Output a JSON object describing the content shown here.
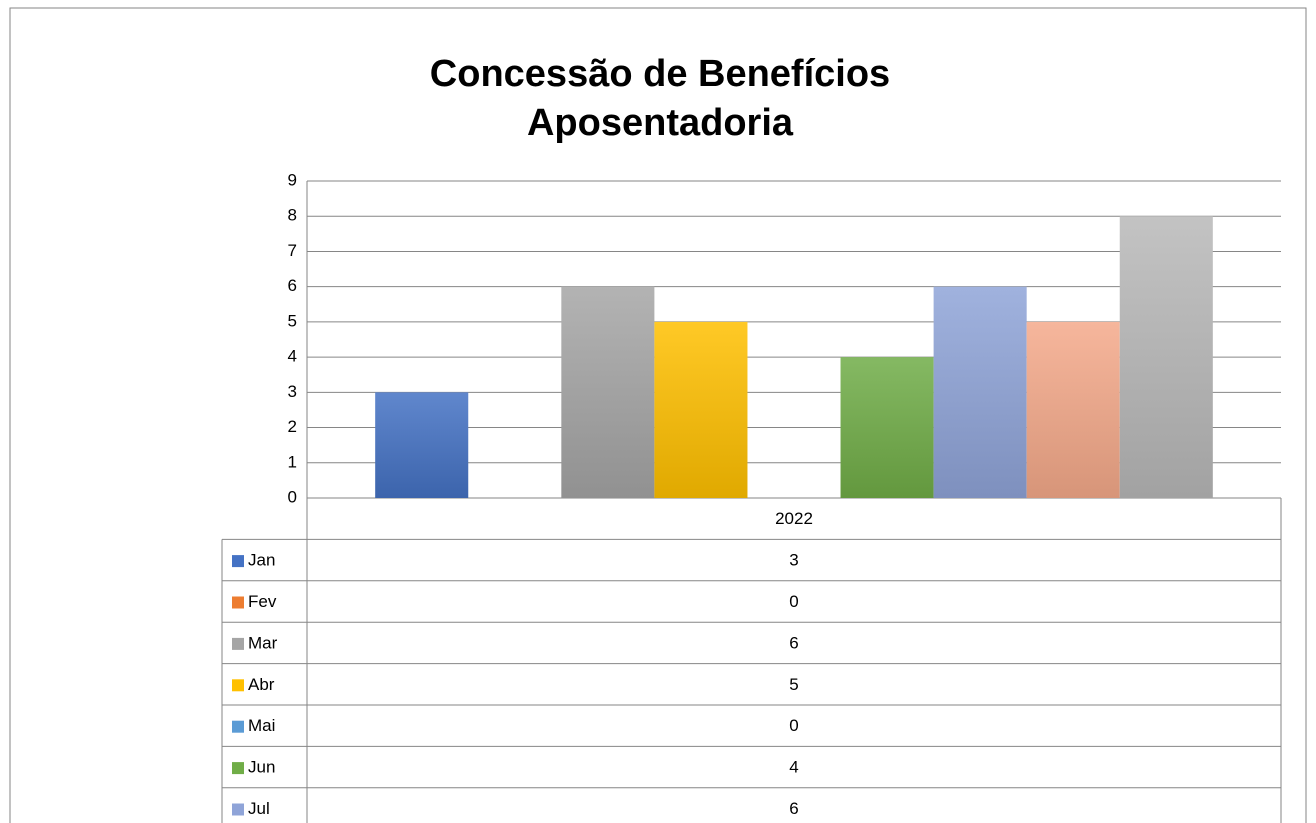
{
  "chart_data": {
    "type": "bar",
    "title": [
      "Concessão de Benefícios",
      "Aposentadoria"
    ],
    "categories": [
      "2022"
    ],
    "series": [
      {
        "name": "Jan",
        "color": "#4472c4",
        "values": [
          3
        ]
      },
      {
        "name": "Fev",
        "color": "#ed7d31",
        "values": [
          0
        ]
      },
      {
        "name": "Mar",
        "color": "#a5a5a5",
        "values": [
          6
        ]
      },
      {
        "name": "Abr",
        "color": "#ffc000",
        "values": [
          5
        ]
      },
      {
        "name": "Mai",
        "color": "#5b9bd5",
        "values": [
          0
        ]
      },
      {
        "name": "Jun",
        "color": "#70ad47",
        "values": [
          4
        ]
      },
      {
        "name": "Jul",
        "color": "#8fa4d8",
        "values": [
          6
        ]
      },
      {
        "name": null,
        "color": "#f4a98a",
        "values": [
          5
        ]
      },
      {
        "name": null,
        "color": "#b8b8b8",
        "values": [
          8
        ]
      }
    ],
    "ylim": [
      0,
      9
    ],
    "yticks": [
      0,
      1,
      2,
      3,
      4,
      5,
      6,
      7,
      8,
      9
    ],
    "grid": true,
    "data_table": true
  }
}
